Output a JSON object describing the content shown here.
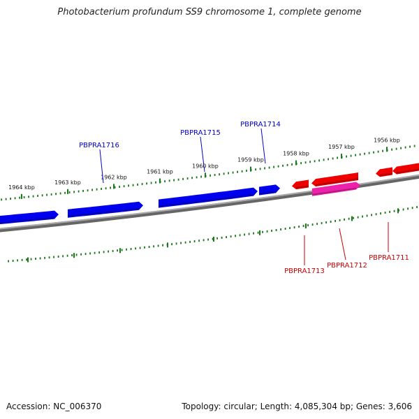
{
  "title": "Photobacterium profundum SS9 chromosome 1, complete genome",
  "footer": {
    "accession": "Accession: NC_006370",
    "info": "Topology: circular; Length: 4,085,304 bp; Genes: 3,606"
  },
  "colors": {
    "backbone": "#888888",
    "tick": "#1a7a1a",
    "forward_gene": "#0000ee",
    "reverse_gene": "#ee0000",
    "reverse_gene_alt": "#ee22aa",
    "forward_label": "#0000cc",
    "reverse_label": "#cc0000"
  },
  "ticks": [
    {
      "label": "1964 kbp",
      "kbp": 1964
    },
    {
      "label": "1963 kbp",
      "kbp": 1963
    },
    {
      "label": "1962 kbp",
      "kbp": 1962
    },
    {
      "label": "1961 kbp",
      "kbp": 1961
    },
    {
      "label": "1960 kbp",
      "kbp": 1960
    },
    {
      "label": "1959 kbp",
      "kbp": 1959
    },
    {
      "label": "1958 kbp",
      "kbp": 1958
    },
    {
      "label": "1957 kbp",
      "kbp": 1957
    },
    {
      "label": "1956 kbp",
      "kbp": 1956
    }
  ],
  "genes": [
    {
      "name": "PBPRA1716",
      "strand": "forward",
      "labeled": true
    },
    {
      "name": "PBPRA1715",
      "strand": "forward",
      "labeled": true
    },
    {
      "name": "PBPRA1714",
      "strand": "forward",
      "labeled": true
    },
    {
      "name": "PBPRA1713",
      "strand": "reverse",
      "labeled": true
    },
    {
      "name": "PBPRA1712",
      "strand": "reverse",
      "labeled": true
    },
    {
      "name": "PBPRA1711",
      "strand": "reverse",
      "labeled": true
    }
  ]
}
